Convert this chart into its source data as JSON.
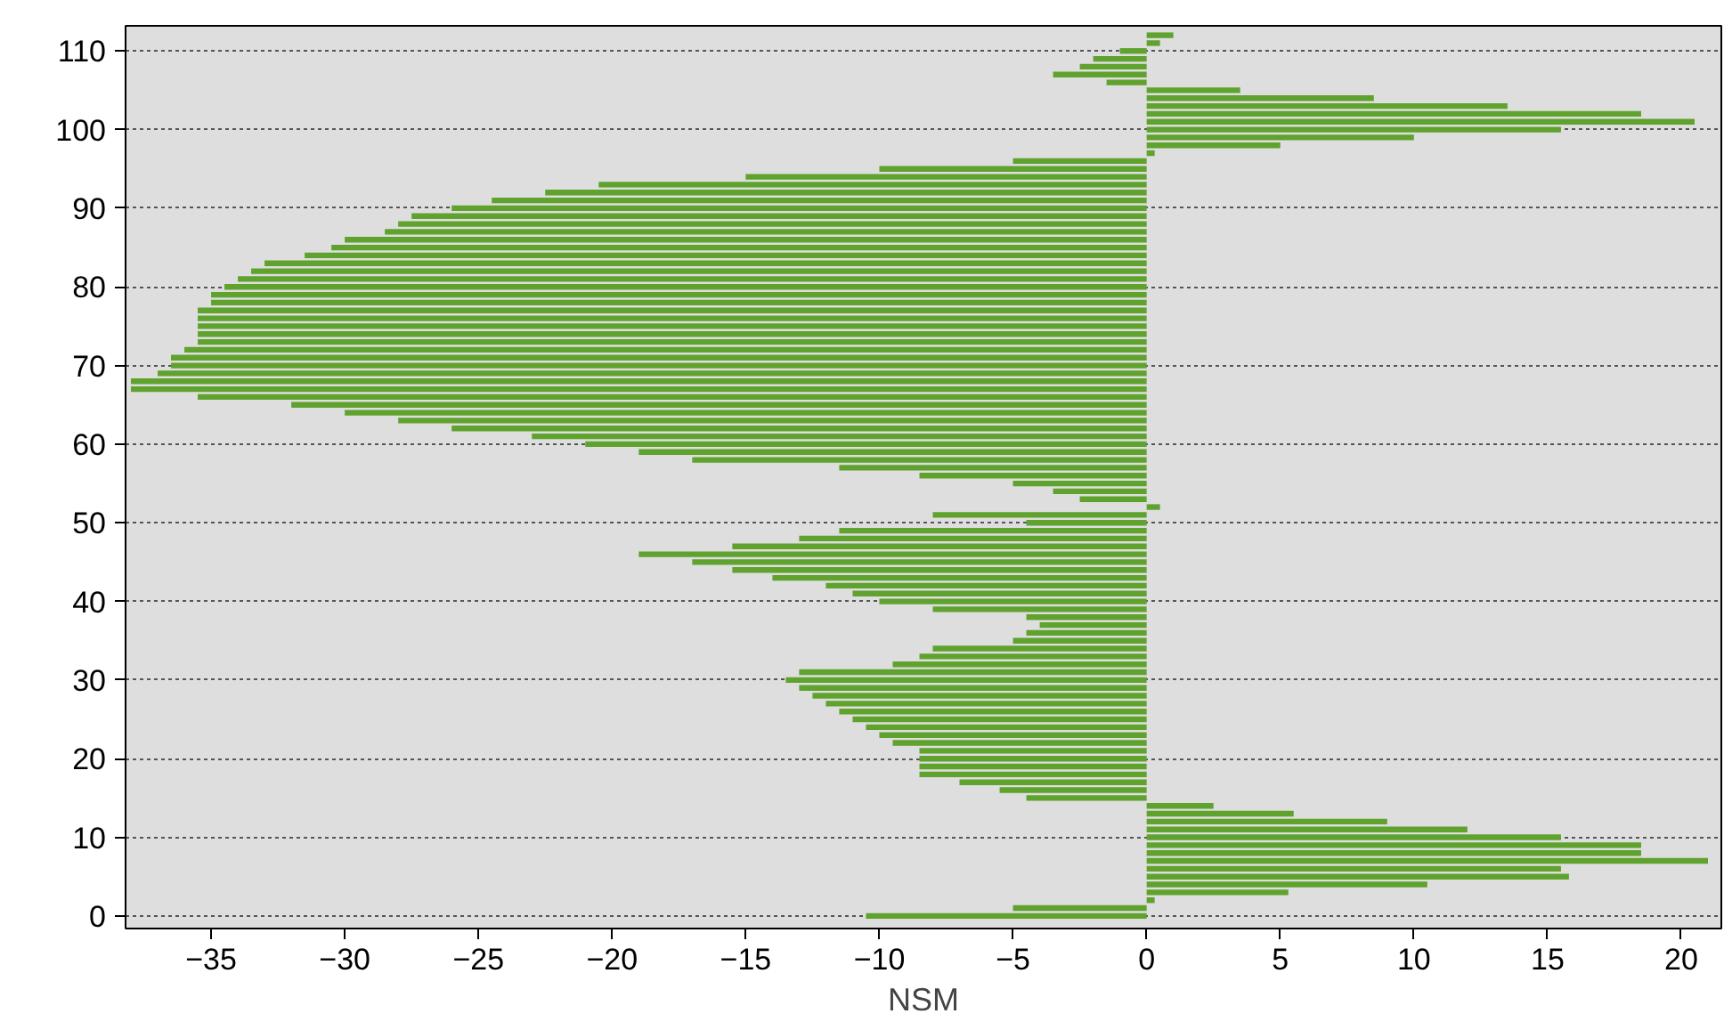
{
  "chart_data": {
    "type": "bar",
    "orientation": "horizontal",
    "xlabel": "NSM",
    "color": "#5fa22e",
    "x": [
      0,
      1,
      2,
      3,
      4,
      5,
      6,
      7,
      8,
      9,
      10,
      11,
      12,
      13,
      14,
      15,
      16,
      17,
      18,
      19,
      20,
      21,
      22,
      23,
      24,
      25,
      26,
      27,
      28,
      29,
      30,
      31,
      32,
      33,
      34,
      35,
      36,
      37,
      38,
      39,
      40,
      41,
      42,
      43,
      44,
      45,
      46,
      47,
      48,
      49,
      50,
      51,
      52,
      53,
      54,
      55,
      56,
      57,
      58,
      59,
      60,
      61,
      62,
      63,
      64,
      65,
      66,
      67,
      68,
      69,
      70,
      71,
      72,
      73,
      74,
      75,
      76,
      77,
      78,
      79,
      80,
      81,
      82,
      83,
      84,
      85,
      86,
      87,
      88,
      89,
      90,
      91,
      92,
      93,
      94,
      95,
      96,
      97,
      98,
      99,
      100,
      101,
      102,
      103,
      104,
      105,
      106,
      107,
      108,
      109,
      110,
      111,
      112
    ],
    "values": [
      -10.5,
      -5,
      0.3,
      5.3,
      10.5,
      15.8,
      15.5,
      21,
      18.5,
      18.5,
      15.5,
      12,
      9,
      5.5,
      2.5,
      -4.5,
      -5.5,
      -7,
      -8.5,
      -8.5,
      -8.5,
      -8.5,
      -9.5,
      -10,
      -10.5,
      -11,
      -11.5,
      -12,
      -12.5,
      -13,
      -13.5,
      -13,
      -9.5,
      -8.5,
      -8,
      -5,
      -4.5,
      -4,
      -4.5,
      -8,
      -10,
      -11,
      -12,
      -14,
      -15.5,
      -17,
      -19,
      -15.5,
      -13,
      -11.5,
      -4.5,
      -8,
      0.5,
      -2.5,
      -3.5,
      -5,
      -8.5,
      -11.5,
      -17,
      -19,
      -21,
      -23,
      -26,
      -28,
      -30,
      -32,
      -35.5,
      -38,
      -38,
      -37,
      -36.5,
      -36.5,
      -36,
      -35.5,
      -35.5,
      -35.5,
      -35.5,
      -35.5,
      -35,
      -35,
      -34.5,
      -34,
      -33.5,
      -33,
      -31.5,
      -30.5,
      -30,
      -28.5,
      -28,
      -27.5,
      -26,
      -24.5,
      -22.5,
      -20.5,
      -15,
      -10,
      -5,
      0.3,
      5,
      10,
      15.5,
      20.5,
      18.5,
      13.5,
      8.5,
      3.5,
      -1.5,
      -3.5,
      -2.5,
      -2,
      -1,
      0.5,
      1
    ],
    "xlim": [
      -38.2,
      21.5
    ],
    "xticks": [
      -35,
      -30,
      -25,
      -20,
      -15,
      -10,
      -5,
      0,
      5,
      10,
      15,
      20
    ],
    "ylim": [
      -1.6,
      113.2
    ],
    "yticks": [
      0,
      10,
      20,
      30,
      40,
      50,
      60,
      70,
      80,
      90,
      100,
      110
    ],
    "grid": "y"
  }
}
